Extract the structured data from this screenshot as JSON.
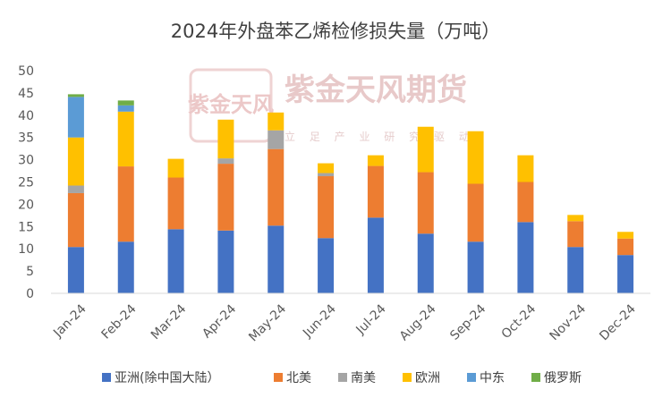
{
  "watermark": {
    "brand": "紫金天风期货",
    "slogan": "立 足 产 业   研 究 驱 动",
    "seal_text": "紫金天风"
  },
  "chart_data": {
    "type": "bar",
    "stacked": true,
    "title": "2024年外盘苯乙烯检修损失量（万吨）",
    "xlabel": "",
    "ylabel": "",
    "ylim": [
      0,
      50
    ],
    "yticks": [
      0,
      5,
      10,
      15,
      20,
      25,
      30,
      35,
      40,
      45,
      50
    ],
    "grid": false,
    "legend_position": "bottom",
    "categories": [
      "Jan-24",
      "Feb-24",
      "Mar-24",
      "Apr-24",
      "May-24",
      "Jun-24",
      "Jul-24",
      "Aug-24",
      "Sep-24",
      "Oct-24",
      "Nov-24",
      "Dec-24"
    ],
    "series": [
      {
        "name": "亚洲(除中国大陆）",
        "color": "#4472C4",
        "values": [
          10.4,
          11.6,
          14.4,
          14.1,
          15.2,
          12.4,
          17.0,
          13.4,
          11.6,
          16.0,
          10.4,
          8.6
        ]
      },
      {
        "name": "北美",
        "color": "#ED7D31",
        "values": [
          12.1,
          16.9,
          11.6,
          15.0,
          17.2,
          13.9,
          11.6,
          13.8,
          13.0,
          9.0,
          5.8,
          3.7
        ]
      },
      {
        "name": "南美",
        "color": "#A5A5A5",
        "values": [
          1.7,
          0,
          0,
          1.2,
          4.2,
          0.7,
          0,
          0,
          0,
          0,
          0,
          0
        ]
      },
      {
        "name": "欧洲",
        "color": "#FFC000",
        "values": [
          10.8,
          12.3,
          4.2,
          8.7,
          4.0,
          2.2,
          2.4,
          10.2,
          11.8,
          6.0,
          1.4,
          1.5
        ]
      },
      {
        "name": "中东",
        "color": "#5B9BD5",
        "values": [
          9.1,
          1.4,
          0,
          0,
          0,
          0,
          0,
          0,
          0,
          0,
          0,
          0
        ]
      },
      {
        "name": "俄罗斯",
        "color": "#70AD47",
        "values": [
          0.6,
          1.1,
          0,
          0,
          0,
          0,
          0,
          0,
          0,
          0,
          0,
          0
        ]
      }
    ]
  }
}
